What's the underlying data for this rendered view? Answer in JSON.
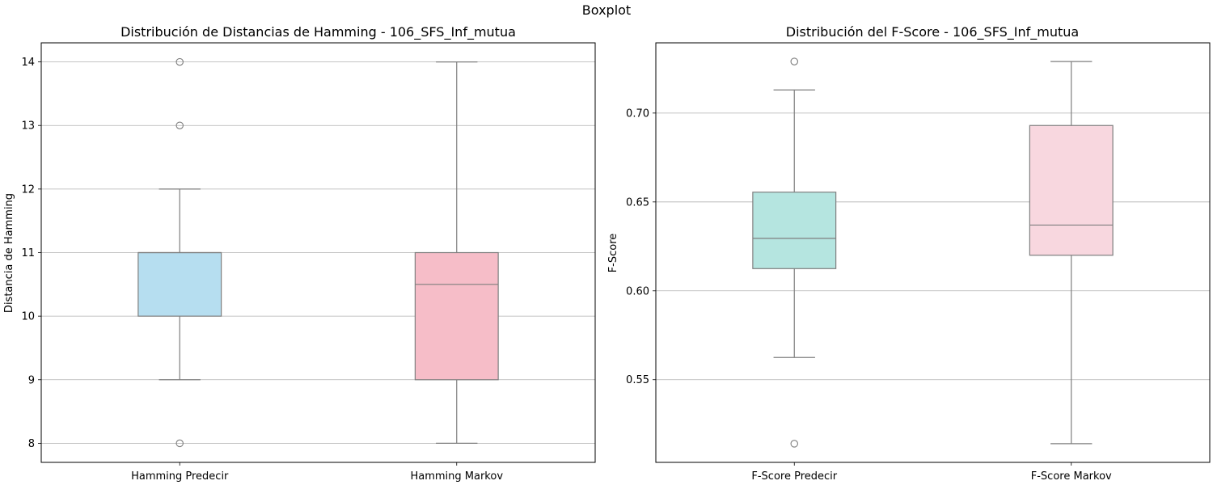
{
  "figure": {
    "title": "Boxplot"
  },
  "colors": {
    "hamming_predecir": "#b6def0",
    "hamming_markov": "#f6bdc8",
    "fscore_predecir": "#b5e5e0",
    "fscore_markov": "#f8d7df",
    "box_edge": "#7f7f7f",
    "grid": "#b0b0b0"
  },
  "chart_data": [
    {
      "type": "box",
      "title": "Distribución de Distancias de Hamming - 106_SFS_Inf_mutua",
      "xlabel": "",
      "ylabel": "Distancia de Hamming",
      "ylim": [
        7.7,
        14.3
      ],
      "yticks": [
        8,
        9,
        10,
        11,
        12,
        13,
        14
      ],
      "ytick_labels": [
        "8",
        "9",
        "10",
        "11",
        "12",
        "13",
        "14"
      ],
      "grid": "y",
      "categories": [
        "Hamming Predecir",
        "Hamming Markov"
      ],
      "boxes": [
        {
          "name": "Hamming Predecir",
          "whisker_low": 9,
          "q1": 10,
          "median": 11,
          "q3": 11,
          "whisker_high": 12,
          "outliers": [
            8,
            13,
            14
          ],
          "color": "#b6def0"
        },
        {
          "name": "Hamming Markov",
          "whisker_low": 8,
          "q1": 9,
          "median": 10.5,
          "q3": 11,
          "whisker_high": 14,
          "outliers": [],
          "color": "#f6bdc8"
        }
      ]
    },
    {
      "type": "box",
      "title": "Distribución del F-Score - 106_SFS_Inf_mutua",
      "xlabel": "",
      "ylabel": "F-Score",
      "ylim": [
        0.5035,
        0.7395
      ],
      "yticks": [
        0.55,
        0.6,
        0.65,
        0.7
      ],
      "ytick_labels": [
        "0.55",
        "0.60",
        "0.65",
        "0.70"
      ],
      "grid": "y",
      "categories": [
        "F-Score Predecir",
        "F-Score Markov"
      ],
      "boxes": [
        {
          "name": "F-Score Predecir",
          "whisker_low": 0.5625,
          "q1": 0.6125,
          "median": 0.6295,
          "q3": 0.6555,
          "whisker_high": 0.713,
          "outliers": [
            0.514,
            0.729
          ],
          "color": "#b5e5e0"
        },
        {
          "name": "F-Score Markov",
          "whisker_low": 0.514,
          "q1": 0.62,
          "median": 0.637,
          "q3": 0.693,
          "whisker_high": 0.729,
          "outliers": [],
          "color": "#f8d7df"
        }
      ]
    }
  ]
}
